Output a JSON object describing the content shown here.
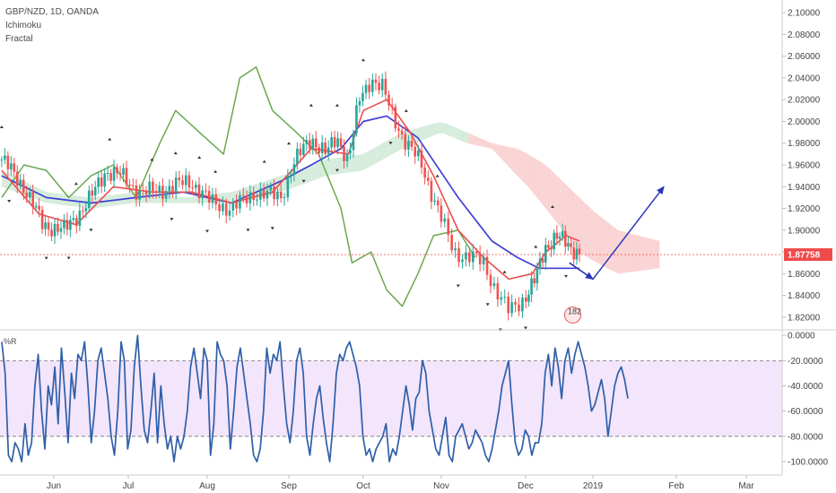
{
  "header": {
    "symbol_line": "GBP/NZD, 1D, OANDA",
    "indicators": [
      "Ichimoku",
      "Fractal"
    ]
  },
  "colors": {
    "up_candle": "#26a69a",
    "down_candle": "#ef5350",
    "tenkan": "#ef4b4b",
    "kijun": "#3f3fd6",
    "chikou": "#6aa84f",
    "cloud_bull": "#cfe9d6",
    "cloud_bear": "#f9cccc",
    "wr_line": "#2f5fa8",
    "wr_band": "#f3e5fb",
    "arrow": "#2a37b8",
    "price_tag": "#ef4b4b"
  },
  "chart_data": [
    {
      "type": "candlestick",
      "title": "GBP/NZD, 1D, OANDA",
      "x_tick_labels": [
        "Jun",
        "Jul",
        "Aug",
        "Sep",
        "Oct",
        "Nov",
        "Dec",
        "2019",
        "Feb",
        "Mar"
      ],
      "y_tick_labels": [
        "1.82000",
        "1.84000",
        "1.86000",
        "1.88000",
        "1.90000",
        "1.92000",
        "1.94000",
        "1.96000",
        "1.98000",
        "2.00000",
        "2.02000",
        "2.04000",
        "2.06000",
        "2.08000",
        "2.10000"
      ],
      "ylim": [
        1.81,
        2.11
      ],
      "last_price_label": "1.87758",
      "last_price": 1.87758,
      "event_badge": "182",
      "grid": false,
      "series": [
        {
          "name": "Ichimoku",
          "components": [
            "Tenkan",
            "Kijun",
            "Chikou",
            "Cloud"
          ]
        },
        {
          "name": "Fractal"
        }
      ],
      "price_path_close": [
        [
          0.0,
          1.965
        ],
        [
          0.3,
          1.94
        ],
        [
          0.55,
          1.905
        ],
        [
          0.85,
          1.9
        ],
        [
          1.2,
          1.93
        ],
        [
          1.4,
          1.955
        ],
        [
          1.6,
          1.95
        ],
        [
          1.85,
          1.935
        ],
        [
          2.0,
          1.935
        ],
        [
          2.25,
          1.94
        ],
        [
          2.5,
          1.945
        ],
        [
          2.75,
          1.925
        ],
        [
          3.0,
          1.92
        ],
        [
          3.3,
          1.935
        ],
        [
          3.6,
          1.93
        ],
        [
          3.75,
          1.96
        ],
        [
          3.9,
          1.975
        ],
        [
          4.0,
          1.985
        ],
        [
          4.2,
          1.97
        ],
        [
          4.35,
          1.985
        ],
        [
          4.5,
          1.965
        ],
        [
          4.65,
          2.02
        ],
        [
          4.8,
          2.04
        ],
        [
          4.95,
          2.03
        ],
        [
          5.05,
          2.01
        ],
        [
          5.25,
          1.98
        ],
        [
          5.45,
          1.96
        ],
        [
          5.65,
          1.92
        ],
        [
          5.85,
          1.88
        ],
        [
          6.05,
          1.875
        ],
        [
          6.2,
          1.87
        ],
        [
          6.35,
          1.845
        ],
        [
          6.5,
          1.825
        ],
        [
          6.65,
          1.835
        ],
        [
          6.85,
          1.855
        ],
        [
          7.0,
          1.885
        ],
        [
          7.15,
          1.895
        ],
        [
          7.35,
          1.885
        ],
        [
          7.5,
          1.88
        ]
      ],
      "tenkan_path": [
        [
          0.0,
          1.955
        ],
        [
          0.5,
          1.915
        ],
        [
          1.0,
          1.905
        ],
        [
          1.5,
          1.94
        ],
        [
          2.0,
          1.935
        ],
        [
          2.5,
          1.935
        ],
        [
          3.0,
          1.925
        ],
        [
          3.5,
          1.935
        ],
        [
          4.0,
          1.975
        ],
        [
          4.5,
          1.97
        ],
        [
          4.7,
          2.01
        ],
        [
          5.0,
          2.02
        ],
        [
          5.3,
          1.99
        ],
        [
          5.6,
          1.95
        ],
        [
          5.9,
          1.9
        ],
        [
          6.2,
          1.875
        ],
        [
          6.5,
          1.855
        ],
        [
          6.8,
          1.86
        ],
        [
          7.0,
          1.88
        ],
        [
          7.3,
          1.895
        ],
        [
          7.5,
          1.89
        ]
      ],
      "kijun_path": [
        [
          0.0,
          1.95
        ],
        [
          0.6,
          1.93
        ],
        [
          1.2,
          1.925
        ],
        [
          1.8,
          1.93
        ],
        [
          2.4,
          1.935
        ],
        [
          3.0,
          1.925
        ],
        [
          3.6,
          1.945
        ],
        [
          4.0,
          1.96
        ],
        [
          4.4,
          1.975
        ],
        [
          4.7,
          2.0
        ],
        [
          5.0,
          2.005
        ],
        [
          5.4,
          1.985
        ],
        [
          5.9,
          1.93
        ],
        [
          6.3,
          1.89
        ],
        [
          6.6,
          1.875
        ],
        [
          6.9,
          1.865
        ],
        [
          7.2,
          1.865
        ],
        [
          7.5,
          1.865
        ]
      ],
      "chikou_path": [
        [
          0.0,
          1.93
        ],
        [
          0.3,
          1.96
        ],
        [
          0.6,
          1.955
        ],
        [
          0.9,
          1.93
        ],
        [
          1.2,
          1.95
        ],
        [
          1.5,
          1.96
        ],
        [
          1.8,
          1.93
        ],
        [
          2.1,
          1.98
        ],
        [
          2.3,
          2.01
        ],
        [
          2.6,
          1.99
        ],
        [
          2.9,
          1.97
        ],
        [
          3.1,
          2.04
        ],
        [
          3.3,
          2.05
        ],
        [
          3.5,
          2.01
        ],
        [
          3.8,
          1.99
        ],
        [
          4.1,
          1.97
        ],
        [
          4.4,
          1.92
        ],
        [
          4.55,
          1.87
        ],
        [
          4.8,
          1.88
        ],
        [
          5.0,
          1.845
        ],
        [
          5.2,
          1.83
        ],
        [
          5.4,
          1.86
        ],
        [
          5.6,
          1.895
        ],
        [
          5.9,
          1.9
        ],
        [
          6.1,
          1.875
        ]
      ],
      "cloud_path": [
        [
          0.0,
          1.955,
          1.94
        ],
        [
          0.6,
          1.935,
          1.925
        ],
        [
          1.2,
          1.93,
          1.92
        ],
        [
          1.8,
          1.935,
          1.925
        ],
        [
          2.4,
          1.93,
          1.925
        ],
        [
          3.0,
          1.935,
          1.925
        ],
        [
          3.6,
          1.95,
          1.935
        ],
        [
          4.2,
          1.965,
          1.95
        ],
        [
          4.7,
          1.97,
          1.955
        ],
        [
          5.2,
          1.99,
          1.975
        ],
        [
          5.7,
          2.0,
          1.99
        ],
        [
          6.0,
          1.99,
          1.98
        ],
        [
          6.3,
          1.98,
          1.975
        ],
        [
          6.6,
          1.975,
          1.95
        ],
        [
          7.0,
          1.96,
          1.92
        ],
        [
          7.5,
          1.93,
          1.88
        ],
        [
          8.0,
          1.9,
          1.86
        ],
        [
          8.5,
          1.89,
          1.865
        ]
      ],
      "fractal_up_at": [
        0.0,
        1.0,
        1.45,
        2.0,
        2.3,
        2.6,
        2.8,
        3.4,
        3.7,
        4.0,
        4.35,
        4.7,
        5.25,
        5.65,
        6.45,
        6.85,
        7.1
      ],
      "fractal_down_at": [
        0.1,
        0.6,
        0.9,
        1.2,
        2.25,
        2.7,
        3.2,
        3.5,
        3.9,
        4.35,
        5.05,
        5.9,
        6.25,
        6.4,
        6.7,
        7.3
      ],
      "forecast_arrow": [
        [
          7.35,
          1.87
        ],
        [
          7.7,
          1.855
        ],
        [
          8.55,
          1.94
        ]
      ]
    },
    {
      "type": "line",
      "title": "%R",
      "ylabel": "%R",
      "y_tick_labels": [
        "0.0000",
        "-20.0000",
        "-40.0000",
        "-60.0000",
        "-80.0000",
        "-100.0000"
      ],
      "ylim": [
        -105,
        3
      ],
      "band": [
        -80,
        -20
      ],
      "series": [
        {
          "name": "%R",
          "values": [
            -5,
            -30,
            -95,
            -100,
            -85,
            -90,
            -100,
            -70,
            -95,
            -85,
            -40,
            -15,
            -60,
            -90,
            -40,
            -55,
            -25,
            -70,
            -10,
            -45,
            -85,
            -30,
            -50,
            -15,
            -20,
            -5,
            -40,
            -85,
            -60,
            -20,
            -10,
            -30,
            -50,
            -80,
            -95,
            -60,
            -5,
            -20,
            -90,
            -75,
            -25,
            0,
            -40,
            -75,
            -85,
            -60,
            -30,
            -85,
            -40,
            -70,
            -90,
            -80,
            -100,
            -80,
            -90,
            -80,
            -60,
            -25,
            -10,
            -30,
            -50,
            -10,
            -20,
            -95,
            -70,
            -5,
            -15,
            -20,
            -40,
            -90,
            -60,
            -25,
            -10,
            -30,
            -50,
            -70,
            -95,
            -100,
            -90,
            -60,
            -10,
            -30,
            -15,
            -20,
            -5,
            -40,
            -70,
            -85,
            -60,
            -20,
            -10,
            -30,
            -80,
            -95,
            -70,
            -50,
            -40,
            -65,
            -85,
            -100,
            -70,
            -30,
            -15,
            -20,
            -10,
            -5,
            -15,
            -25,
            -40,
            -80,
            -95,
            -90,
            -100,
            -90,
            -85,
            -80,
            -70,
            -100,
            -90,
            -95,
            -80,
            -60,
            -40,
            -55,
            -75,
            -50,
            -45,
            -20,
            -30,
            -60,
            -75,
            -90,
            -95,
            -80,
            -65,
            -95,
            -100,
            -80,
            -75,
            -70,
            -80,
            -90,
            -85,
            -75,
            -80,
            -85,
            -95,
            -100,
            -90,
            -75,
            -60,
            -40,
            -30,
            -20,
            -55,
            -85,
            -95,
            -90,
            -75,
            -80,
            -95,
            -85,
            -85,
            -70,
            -30,
            -15,
            -40,
            -10,
            -25,
            -50,
            -20,
            -10,
            -30,
            -15,
            -5,
            -15,
            -25,
            -40,
            -60,
            -55,
            -45,
            -35,
            -50,
            -80,
            -60,
            -40,
            -30,
            -25,
            -35,
            -50
          ]
        }
      ]
    }
  ]
}
